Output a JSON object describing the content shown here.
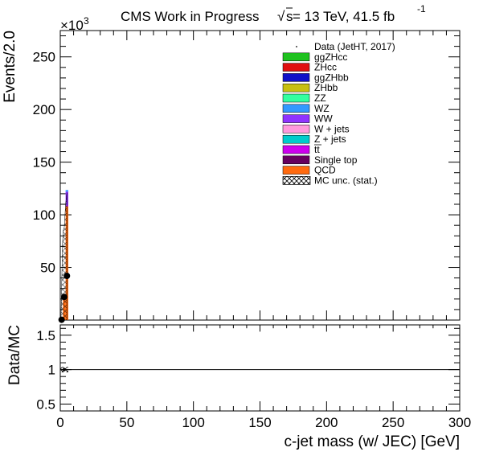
{
  "chart_data": {
    "type": "bar",
    "header": {
      "left": "CMS Work in Progress",
      "sqrt_symbol": "√",
      "sqrt_symbol_var": "s",
      "right": " = 13 TeV, 41.5 fb",
      "lumi_exponent": "-1"
    },
    "main": {
      "ylabel": "Events/2.0",
      "y_multiplier_base": "×10",
      "y_multiplier_exp": "3",
      "ylim": [
        0,
        275
      ],
      "yticks": [
        50,
        100,
        150,
        200,
        250
      ],
      "xlim": [
        0,
        300
      ]
    },
    "ratio": {
      "ylabel": "Data/MC",
      "ylim": [
        0.4,
        1.65
      ],
      "yticks": [
        0.5,
        1,
        1.5
      ],
      "ytick_labels": [
        "0.5",
        "1",
        "1.5"
      ],
      "reference_line": 1.0
    },
    "x_axis": {
      "label": "c-jet mass (w/ JEC) [GeV]",
      "ticks": [
        0,
        50,
        100,
        150,
        200,
        250,
        300
      ]
    },
    "legend": {
      "placement": "top-right",
      "entries": [
        {
          "name": "Data (JetHT, 2017)",
          "style": "marker",
          "color": "#000000"
        },
        {
          "name": "ggZHcc",
          "style": "fill",
          "color": "#1fc21f"
        },
        {
          "name": "ZHcc",
          "style": "fill",
          "color": "#e01010"
        },
        {
          "name": "ggZHbb",
          "style": "fill",
          "color": "#1010c8"
        },
        {
          "name": "ZHbb",
          "style": "fill",
          "color": "#c8c010"
        },
        {
          "name": "ZZ",
          "style": "fill",
          "color": "#33ffa0"
        },
        {
          "name": "WZ",
          "style": "fill",
          "color": "#3399ff"
        },
        {
          "name": "WW",
          "style": "fill",
          "color": "#8f33ff"
        },
        {
          "name": "W + jets",
          "style": "fill",
          "color": "#ff99dd"
        },
        {
          "name": "Z + jets",
          "style": "fill",
          "color": "#00cccc"
        },
        {
          "name": "tt",
          "style": "fill",
          "color": "#cc00ee",
          "bar": true
        },
        {
          "name": "Single top",
          "style": "fill",
          "color": "#66005f"
        },
        {
          "name": "QCD",
          "style": "fill",
          "color": "#ff6a0f"
        },
        {
          "name": "MC unc. (stat.)",
          "style": "hatch",
          "color": "#000000"
        }
      ]
    },
    "bins": {
      "width": 2.0,
      "edges_low": [
        0,
        2,
        4
      ],
      "stack": [
        {
          "name": "QCD",
          "color": "#ff6a0f",
          "values": [
            0.5,
            22,
            108
          ]
        },
        {
          "name": "tt",
          "color": "#cc00ee",
          "values": [
            0.0,
            0.2,
            1.0
          ]
        },
        {
          "name": "WW",
          "color": "#8f33ff",
          "values": [
            0.0,
            0.3,
            13
          ]
        },
        {
          "name": "WZ",
          "color": "#3399ff",
          "values": [
            0.0,
            0.1,
            1.5
          ]
        }
      ],
      "mc_unc_envelope": [
        {
          "x": 0.5,
          "y": 0.5
        },
        {
          "x": 1.0,
          "y": 30
        },
        {
          "x": 1.6,
          "y": 70
        },
        {
          "x": 2.2,
          "y": 85
        },
        {
          "x": 3.0,
          "y": 88
        },
        {
          "x": 4.0,
          "y": 110
        },
        {
          "x": 5.0,
          "y": 121
        }
      ],
      "data_points": [
        {
          "x": 1.0,
          "y": 0.3
        },
        {
          "x": 3.0,
          "y": 22
        },
        {
          "x": 5.0,
          "y": 42
        }
      ],
      "ratio_points": [
        {
          "x": 3.0,
          "y": 1.0
        }
      ]
    }
  }
}
